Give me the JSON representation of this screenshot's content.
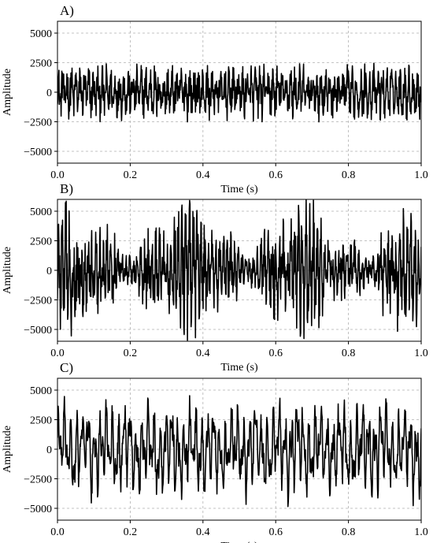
{
  "figure": {
    "background": "#ffffff",
    "line_color": "#000000",
    "grid_color": "#b0b0b0"
  },
  "chart_data": [
    {
      "type": "line",
      "panel_label": "A)",
      "xlabel": "Time (s)",
      "ylabel": "Amplitude",
      "xlim": [
        0.0,
        1.0
      ],
      "ylim": [
        -6000,
        6000
      ],
      "xticks": [
        0.0,
        0.2,
        0.4,
        0.6,
        0.8,
        1.0
      ],
      "xtick_labels": [
        "0.0",
        "0.2",
        "0.4",
        "0.6",
        "0.8",
        "1.0"
      ],
      "yticks": [
        -5000,
        -2500,
        0,
        2500,
        5000
      ],
      "ytick_labels": [
        "−5000",
        "−2500",
        "0",
        "2500",
        "5000"
      ],
      "grid": true,
      "signal": {
        "samples": 1000,
        "typical_peak": 2300,
        "max_abs": 3200,
        "character": "dense noisy oscillation, roughly constant envelope"
      }
    },
    {
      "type": "line",
      "panel_label": "B)",
      "xlabel": "Time (s)",
      "ylabel": "Amplitude",
      "xlim": [
        0.0,
        1.0
      ],
      "ylim": [
        -6000,
        6000
      ],
      "xticks": [
        0.0,
        0.2,
        0.4,
        0.6,
        0.8,
        1.0
      ],
      "xtick_labels": [
        "0.0",
        "0.2",
        "0.4",
        "0.6",
        "0.8",
        "1.0"
      ],
      "yticks": [
        -5000,
        -2500,
        0,
        2500,
        5000
      ],
      "ytick_labels": [
        "−5000",
        "−2500",
        "0",
        "2500",
        "5000"
      ],
      "grid": true,
      "signal": {
        "samples": 1000,
        "typical_peak": 3800,
        "max_abs": 6000,
        "character": "dense noisy oscillation with bursts, clipped at axis limits"
      }
    },
    {
      "type": "line",
      "panel_label": "C)",
      "xlabel": "Time (s)",
      "ylabel": "Amplitude",
      "xlim": [
        0.0,
        1.0
      ],
      "ylim": [
        -6000,
        6000
      ],
      "xticks": [
        0.0,
        0.2,
        0.4,
        0.6,
        0.8,
        1.0
      ],
      "xtick_labels": [
        "0.0",
        "0.2",
        "0.4",
        "0.6",
        "0.8",
        "1.0"
      ],
      "yticks": [
        -5000,
        -2500,
        0,
        2500,
        5000
      ],
      "ytick_labels": [
        "−5000",
        "−2500",
        "0",
        "2500",
        "5000"
      ],
      "grid": true,
      "signal": {
        "samples": 1000,
        "typical_peak": 3600,
        "max_abs": 5500,
        "character": "oscillation with smoother periodic structure"
      }
    }
  ]
}
